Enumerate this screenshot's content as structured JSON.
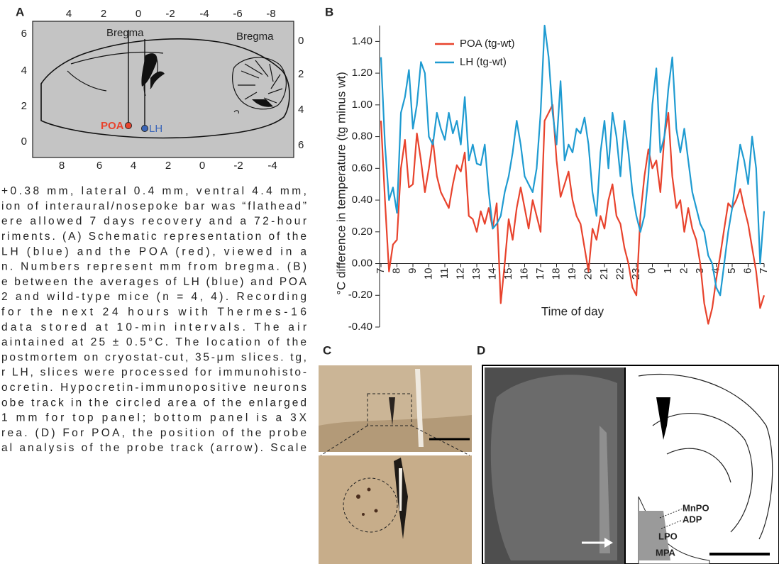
{
  "panel_letters": {
    "a": "A",
    "b": "B",
    "c": "C",
    "d": "D"
  },
  "panel_a": {
    "top_ticks": [
      "4",
      "2",
      "0",
      "-2",
      "-4",
      "-6",
      "-8"
    ],
    "bottom_ticks": [
      "8",
      "6",
      "4",
      "2",
      "0",
      "-2",
      "-4"
    ],
    "left_ticks": [
      "6",
      "4",
      "2",
      "0"
    ],
    "right_ticks": [
      "0",
      "2",
      "4",
      "6"
    ],
    "bregma_left": "Bregma",
    "bregma_right": "Bregma",
    "poa": "POA",
    "lh": "LH"
  },
  "caption_lines": [
    "+0.38 mm, lateral 0.4 mm, ventral 4.4 mm,",
    "ion of interaural/nosepoke bar was “flathead”",
    "ere allowed 7 days recovery and a 72-hour",
    "riments. (A) Schematic representation of the",
    "LH (blue) and the POA (red), viewed in a",
    "n. Numbers represent mm from bregma. (B)",
    "e between the averages of LH (blue) and POA",
    "2 and wild-type mice (n = 4, 4). Recording",
    "for the next 24 hours with Thermes-16",
    "data stored at 10-min intervals. The air",
    "aintained at 25 ± 0.5°C. The location of the",
    "postmortem on cryostat-cut, 35-μm slices. tg,",
    "r LH, slices were processed for immunohisto-",
    "ocretin. Hypocretin-immunopositive neurons",
    "obe track in the circled area of the enlarged",
    "1 mm for top panel; bottom panel is a 3X",
    "rea. (D) For POA, the position of the probe",
    "al analysis of the probe track (arrow). Scale"
  ],
  "panel_d": {
    "labels": [
      "MnPO",
      "ADP",
      "LPO",
      "MPA"
    ]
  },
  "chart_data": {
    "type": "line",
    "ylabel": "°C difference in temperature (tg minus wt)",
    "xlabel": "Time of day",
    "x": [
      0,
      0.25,
      0.5,
      0.75,
      1,
      1.25,
      1.5,
      1.75,
      2,
      2.25,
      2.5,
      2.75,
      3,
      3.25,
      3.5,
      3.75,
      4,
      4.25,
      4.5,
      4.75,
      5,
      5.25,
      5.5,
      5.75,
      6,
      6.25,
      6.5,
      6.75,
      7,
      7.25,
      7.5,
      7.75,
      8,
      8.25,
      8.5,
      8.75,
      9,
      9.25,
      9.5,
      9.75,
      10,
      10.25,
      10.5,
      10.75,
      11,
      11.25,
      11.5,
      11.75,
      12,
      12.25,
      12.5,
      12.75,
      13,
      13.25,
      13.5,
      13.75,
      14,
      14.25,
      14.5,
      14.75,
      15,
      15.25,
      15.5,
      15.75,
      16,
      16.25,
      16.5,
      16.75,
      17,
      17.25,
      17.5,
      17.75,
      18,
      18.25,
      18.5,
      18.75,
      19,
      19.25,
      19.5,
      19.75,
      20,
      20.25,
      20.5,
      20.75,
      21,
      21.25,
      21.5,
      21.75,
      22,
      22.25,
      22.5,
      22.75,
      23,
      23.25,
      23.5,
      23.75,
      24
    ],
    "series": [
      {
        "name": "POA (tg-wt)",
        "color": "#e8432d",
        "values": [
          0.9,
          0.4,
          -0.05,
          0.12,
          0.15,
          0.6,
          0.78,
          0.48,
          0.5,
          0.82,
          0.65,
          0.45,
          0.6,
          0.78,
          0.55,
          0.45,
          0.4,
          0.35,
          0.5,
          0.62,
          0.58,
          0.7,
          0.3,
          0.28,
          0.2,
          0.33,
          0.25,
          0.35,
          0.22,
          0.38,
          -0.25,
          0,
          0.28,
          0.15,
          0.35,
          0.48,
          0.35,
          0.22,
          0.4,
          0.3,
          0.2,
          0.9,
          0.95,
          1,
          0.65,
          0.42,
          0.5,
          0.58,
          0.4,
          0.3,
          0.25,
          0.1,
          -0.05,
          0.22,
          0.15,
          0.3,
          0.22,
          0.4,
          0.5,
          0.3,
          0.25,
          0.1,
          0,
          -0.15,
          -0.2,
          0.3,
          0.55,
          0.72,
          0.6,
          0.65,
          0.45,
          0.8,
          0.95,
          0.55,
          0.35,
          0.4,
          0.2,
          0.35,
          0.22,
          0.15,
          0,
          -0.25,
          -0.38,
          -0.28,
          -0.1,
          0.05,
          0.22,
          0.38,
          0.35,
          0.4,
          0.47,
          0.35,
          0.25,
          0.1,
          -0.05,
          -0.28,
          -0.2
        ]
      },
      {
        "name": "LH (tg-wt)",
        "color": "#1f9bd1",
        "values": [
          1.3,
          0.75,
          0.4,
          0.48,
          0.32,
          0.95,
          1.05,
          1.22,
          0.85,
          1,
          1.27,
          1.2,
          0.8,
          0.75,
          0.95,
          0.85,
          0.78,
          0.95,
          0.82,
          0.9,
          0.75,
          1.05,
          0.65,
          0.75,
          0.63,
          0.62,
          0.75,
          0.45,
          0.22,
          0.25,
          0.3,
          0.45,
          0.55,
          0.7,
          0.9,
          0.75,
          0.55,
          0.5,
          0.45,
          0.6,
          0.95,
          1.5,
          1.3,
          0.95,
          0.75,
          1.15,
          0.65,
          0.75,
          0.7,
          0.85,
          0.82,
          0.92,
          0.75,
          0.45,
          0.3,
          0.7,
          0.9,
          0.6,
          0.95,
          0.8,
          0.55,
          0.9,
          0.7,
          0.45,
          0.3,
          0.2,
          0.3,
          0.55,
          1,
          1.23,
          0.7,
          0.8,
          1.1,
          1.3,
          0.85,
          0.7,
          0.85,
          0.65,
          0.45,
          0.35,
          0.25,
          0.2,
          0.05,
          0,
          -0.15,
          -0.2,
          0,
          0.2,
          0.35,
          0.55,
          0.75,
          0.65,
          0.5,
          0.8,
          0.6,
          0,
          0.33
        ]
      }
    ],
    "xlim": [
      0,
      24
    ],
    "xticks": [
      {
        "value": 0,
        "label": "7"
      },
      {
        "value": 1,
        "label": "8"
      },
      {
        "value": 2,
        "label": "9"
      },
      {
        "value": 3,
        "label": "10"
      },
      {
        "value": 4,
        "label": "11"
      },
      {
        "value": 5,
        "label": "12"
      },
      {
        "value": 6,
        "label": "13"
      },
      {
        "value": 7,
        "label": "14"
      },
      {
        "value": 8,
        "label": "15"
      },
      {
        "value": 9,
        "label": "16"
      },
      {
        "value": 10,
        "label": "17"
      },
      {
        "value": 11,
        "label": "18"
      },
      {
        "value": 12,
        "label": "19"
      },
      {
        "value": 13,
        "label": "20"
      },
      {
        "value": 14,
        "label": "21"
      },
      {
        "value": 15,
        "label": "22"
      },
      {
        "value": 16,
        "label": "23"
      },
      {
        "value": 17,
        "label": "0"
      },
      {
        "value": 18,
        "label": "1"
      },
      {
        "value": 19,
        "label": "2"
      },
      {
        "value": 20,
        "label": "3"
      },
      {
        "value": 21,
        "label": "4"
      },
      {
        "value": 22,
        "label": "5"
      },
      {
        "value": 23,
        "label": "6"
      },
      {
        "value": 24,
        "label": "7"
      }
    ],
    "ylim": [
      -0.4,
      1.5
    ],
    "yticks": [
      {
        "value": -0.4,
        "label": "-0.40"
      },
      {
        "value": -0.2,
        "label": "-0.20"
      },
      {
        "value": 0,
        "label": "0.00"
      },
      {
        "value": 0.2,
        "label": "0.20"
      },
      {
        "value": 0.4,
        "label": "0.40"
      },
      {
        "value": 0.6,
        "label": "0.60"
      },
      {
        "value": 0.8,
        "label": "0.80"
      },
      {
        "value": 1,
        "label": "1.00"
      },
      {
        "value": 1.2,
        "label": "1.20"
      },
      {
        "value": 1.4,
        "label": "1.40"
      }
    ],
    "legend": "upper left"
  }
}
